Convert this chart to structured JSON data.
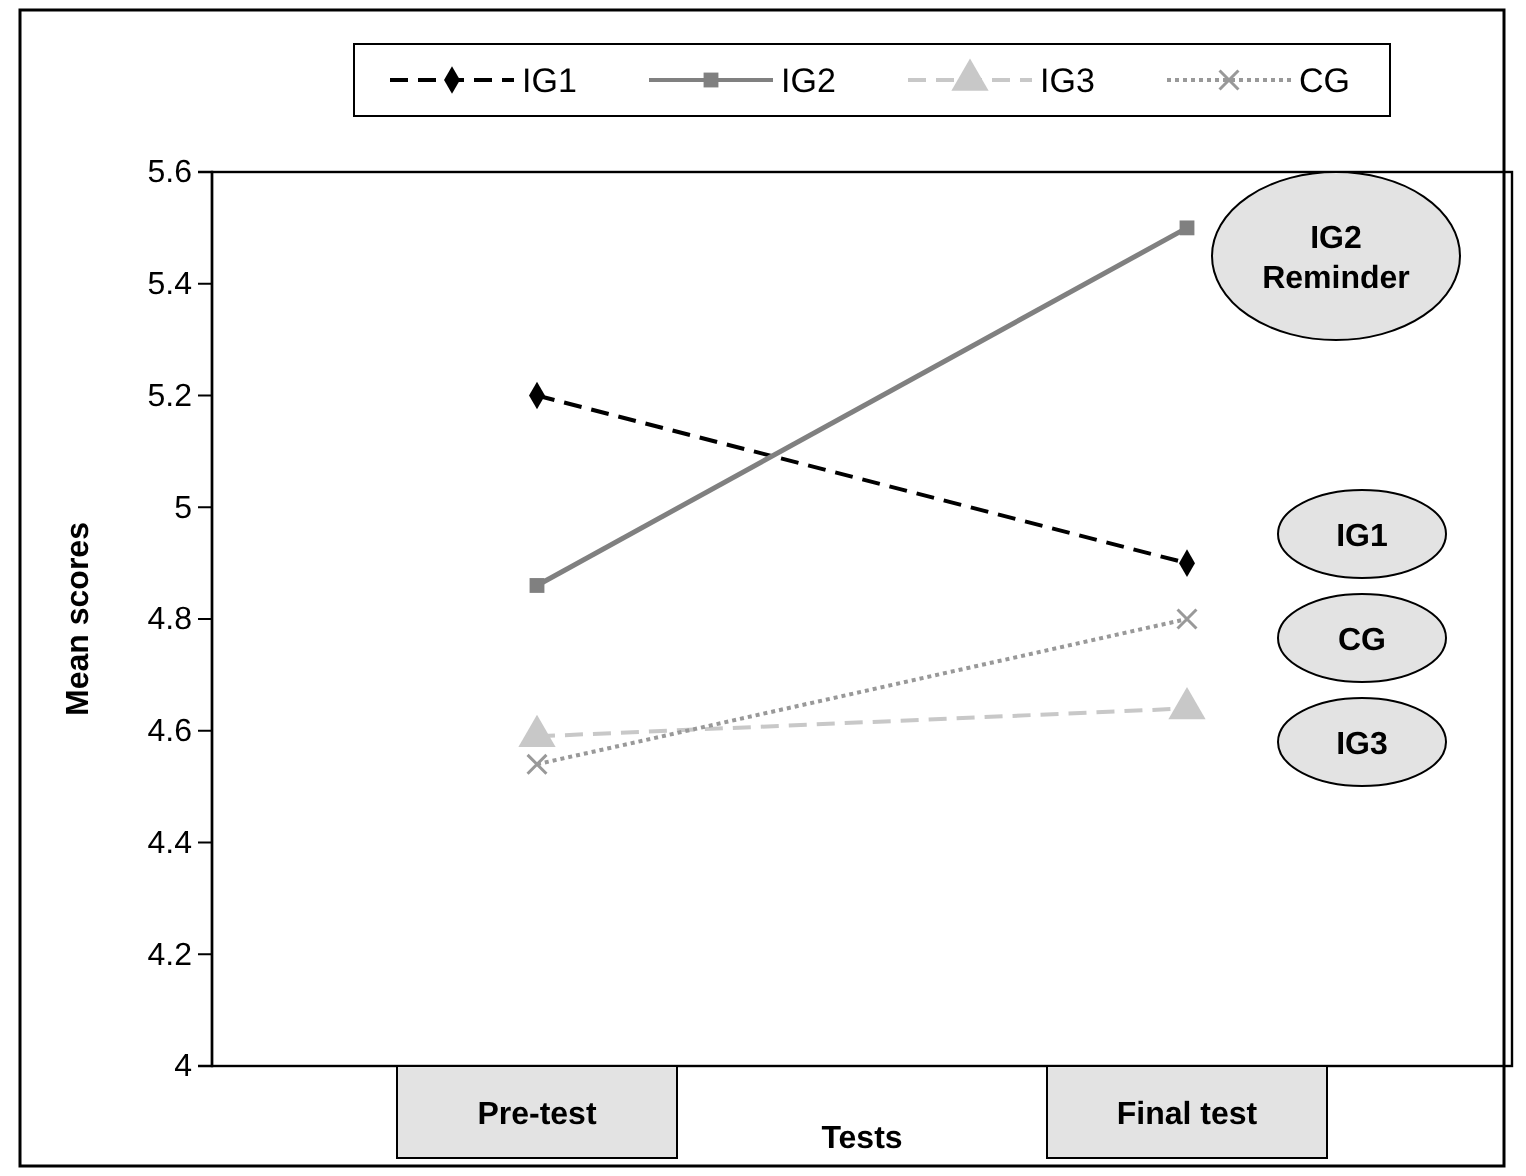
{
  "chart_data": {
    "type": "line",
    "xlabel": "Tests",
    "ylabel": "Mean scores",
    "categories": [
      "Pre-test",
      "Final test"
    ],
    "series": [
      {
        "name": "IG1",
        "color": "#000000",
        "values": [
          5.2,
          4.9
        ],
        "marker": "diamond",
        "line_style": "dashed"
      },
      {
        "name": "IG2",
        "color": "#808080",
        "values": [
          4.86,
          5.5
        ],
        "marker": "square",
        "line_style": "solid"
      },
      {
        "name": "IG3",
        "color": "#c8c8c8",
        "values": [
          4.59,
          4.64
        ],
        "marker": "triangle",
        "line_style": "dashed"
      },
      {
        "name": "CG",
        "color": "#999999",
        "values": [
          4.54,
          4.8
        ],
        "marker": "cross",
        "line_style": "dotted"
      }
    ],
    "ylim": [
      4,
      5.6
    ],
    "yticks": [
      4,
      4.2,
      4.4,
      4.6,
      4.8,
      5,
      5.2,
      5.4,
      5.6
    ],
    "grid": false,
    "legend": "top",
    "annotations": [
      "IG2\nReminder",
      "IG1",
      "CG",
      "IG3"
    ]
  }
}
